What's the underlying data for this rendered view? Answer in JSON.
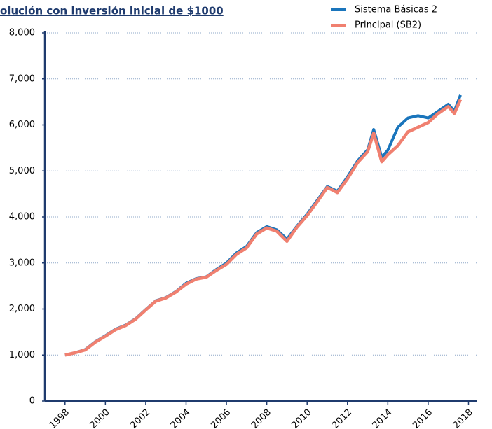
{
  "chart_data": {
    "type": "line",
    "title": "olución con inversión inicial de $1000",
    "x": [
      1998.0,
      1998.5,
      1999.0,
      1999.5,
      2000.0,
      2000.5,
      2001.0,
      2001.5,
      2002.0,
      2002.5,
      2003.0,
      2003.5,
      2004.0,
      2004.5,
      2005.0,
      2005.5,
      2006.0,
      2006.5,
      2007.0,
      2007.5,
      2008.0,
      2008.5,
      2009.0,
      2009.5,
      2010.0,
      2010.5,
      2011.0,
      2011.5,
      2012.0,
      2012.5,
      2013.0,
      2013.3,
      2013.7,
      2014.0,
      2014.5,
      2015.0,
      2015.5,
      2016.0,
      2016.5,
      2017.0,
      2017.3,
      2017.6
    ],
    "series": [
      {
        "name": "Sistema Básicas 2",
        "color": "#1a75bc",
        "values": [
          1000,
          1050,
          1120,
          1290,
          1420,
          1560,
          1650,
          1790,
          1990,
          2180,
          2250,
          2380,
          2560,
          2660,
          2700,
          2860,
          3000,
          3220,
          3360,
          3660,
          3790,
          3720,
          3520,
          3800,
          4060,
          4360,
          4660,
          4560,
          4870,
          5220,
          5460,
          5900,
          5300,
          5450,
          5950,
          6150,
          6200,
          6150,
          6300,
          6450,
          6300,
          6650
        ]
      },
      {
        "name": "Principal (SB2)",
        "color": "#f08070",
        "values": [
          1000,
          1050,
          1110,
          1280,
          1410,
          1550,
          1640,
          1780,
          1980,
          2170,
          2240,
          2370,
          2540,
          2650,
          2690,
          2840,
          2970,
          3190,
          3330,
          3630,
          3760,
          3690,
          3470,
          3780,
          4030,
          4330,
          4640,
          4530,
          4830,
          5180,
          5420,
          5820,
          5200,
          5350,
          5550,
          5850,
          5950,
          6050,
          6250,
          6400,
          6250,
          6550
        ]
      }
    ],
    "xlim": [
      1997,
      2018.4
    ],
    "xticks": [
      1998,
      2000,
      2002,
      2004,
      2006,
      2008,
      2010,
      2012,
      2014,
      2016,
      2018
    ],
    "ylim": [
      0,
      8000
    ],
    "yticks": [
      0,
      {
        "value": 1000,
        "label": "1,000"
      },
      {
        "value": 2000,
        "label": "2,000"
      },
      {
        "value": 3000,
        "label": "3,000"
      },
      {
        "value": 4000,
        "label": "4,000"
      },
      {
        "value": 5000,
        "label": "5,000"
      },
      {
        "value": 6000,
        "label": "6,000"
      },
      {
        "value": 7000,
        "label": "7,000"
      },
      {
        "value": 8000,
        "label": "8,000"
      }
    ],
    "grid": true
  }
}
